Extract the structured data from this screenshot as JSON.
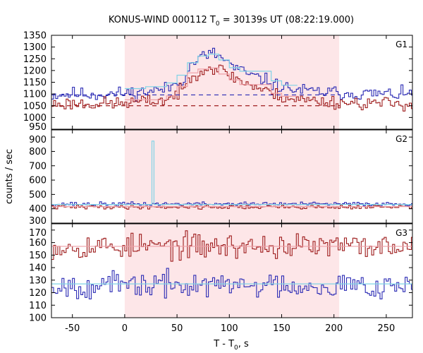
{
  "chart_data": {
    "type": "line",
    "title": {
      "prefix": "KONUS-WIND 000112 T",
      "sub": "0",
      "suffix": " = 30139s UT (08:22:19.000)"
    },
    "xlabel": {
      "prefix": "T - T",
      "sub": "0",
      "suffix": ", s"
    },
    "ylabel": "counts / sec",
    "xlim": [
      -70,
      275
    ],
    "xticks": [
      -50,
      0,
      50,
      100,
      150,
      200,
      250
    ],
    "shaded_interval": [
      0,
      205
    ],
    "colors": {
      "shade": "#fde6e8",
      "blue": "#2a2ab4",
      "red": "#9e1c1c",
      "cyan": "#7fd3e6",
      "pink": "#ee9fa6",
      "frame": "#000000"
    },
    "panels": [
      {
        "label": "G1",
        "ylim": [
          950,
          1350
        ],
        "yticks": [
          950,
          1000,
          1050,
          1100,
          1150,
          1200,
          1250,
          1300,
          1350
        ],
        "series": [
          {
            "kind": "step",
            "color": "blue",
            "points": [
              [
                -70,
                1096
              ],
              [
                -50,
                1101
              ],
              [
                -30,
                1098
              ],
              [
                -10,
                1100
              ],
              [
                0,
                1104
              ],
              [
                20,
                1110
              ],
              [
                40,
                1122
              ],
              [
                55,
                1160
              ],
              [
                65,
                1232
              ],
              [
                75,
                1262
              ],
              [
                85,
                1272
              ],
              [
                95,
                1248
              ],
              [
                105,
                1212
              ],
              [
                115,
                1190
              ],
              [
                125,
                1172
              ],
              [
                135,
                1158
              ],
              [
                145,
                1136
              ],
              [
                160,
                1120
              ],
              [
                180,
                1110
              ],
              [
                200,
                1106
              ],
              [
                220,
                1102
              ],
              [
                250,
                1100
              ],
              [
                275,
                1098
              ]
            ],
            "noise": 14,
            "seed": 11
          },
          {
            "kind": "step",
            "color": "red",
            "points": [
              [
                -70,
                1056
              ],
              [
                -50,
                1060
              ],
              [
                -30,
                1058
              ],
              [
                -10,
                1060
              ],
              [
                0,
                1062
              ],
              [
                20,
                1068
              ],
              [
                40,
                1075
              ],
              [
                55,
                1112
              ],
              [
                65,
                1185
              ],
              [
                75,
                1206
              ],
              [
                85,
                1212
              ],
              [
                95,
                1196
              ],
              [
                105,
                1170
              ],
              [
                115,
                1148
              ],
              [
                125,
                1130
              ],
              [
                135,
                1112
              ],
              [
                145,
                1095
              ],
              [
                160,
                1080
              ],
              [
                180,
                1072
              ],
              [
                200,
                1066
              ],
              [
                220,
                1062
              ],
              [
                250,
                1060
              ],
              [
                275,
                1058
              ]
            ],
            "noise": 14,
            "seed": 23
          },
          {
            "kind": "step",
            "color": "cyan",
            "bins": [
              [
                0,
                20,
                1123
              ],
              [
                20,
                40,
                1131
              ],
              [
                40,
                50,
                1147
              ],
              [
                50,
                60,
                1180
              ],
              [
                60,
                70,
                1233
              ],
              [
                70,
                80,
                1262
              ],
              [
                80,
                90,
                1270
              ],
              [
                90,
                100,
                1245
              ],
              [
                100,
                110,
                1212
              ],
              [
                110,
                140,
                1197
              ],
              [
                140,
                150,
                1156
              ],
              [
                150,
                165,
                1137
              ]
            ]
          },
          {
            "kind": "step",
            "color": "pink",
            "bins": [
              [
                0,
                40,
                1075
              ],
              [
                40,
                50,
                1092
              ],
              [
                50,
                60,
                1132
              ],
              [
                60,
                70,
                1190
              ],
              [
                70,
                80,
                1206
              ],
              [
                80,
                90,
                1211
              ],
              [
                90,
                100,
                1185
              ],
              [
                100,
                110,
                1160
              ],
              [
                110,
                140,
                1140
              ],
              [
                140,
                150,
                1103
              ],
              [
                150,
                165,
                1090
              ]
            ]
          },
          {
            "kind": "dashed",
            "color": "blue",
            "from": -70,
            "to": 206,
            "value": 1096
          },
          {
            "kind": "dashed",
            "color": "red",
            "from": -70,
            "to": 206,
            "value": 1050
          }
        ]
      },
      {
        "label": "G2",
        "ylim": [
          300,
          950
        ],
        "yticks": [
          300,
          400,
          500,
          600,
          700,
          800,
          900
        ],
        "series": [
          {
            "kind": "step",
            "color": "blue",
            "points": [
              [
                -70,
                433
              ],
              [
                275,
                433
              ]
            ],
            "noise": 7,
            "seed": 37
          },
          {
            "kind": "step",
            "color": "red",
            "points": [
              [
                -70,
                412
              ],
              [
                275,
                412
              ]
            ],
            "noise": 7,
            "seed": 41
          },
          {
            "kind": "step",
            "color": "cyan",
            "bins": [
              [
                -70,
                26,
                430
              ],
              [
                26,
                28,
                872
              ],
              [
                28,
                275,
                430
              ]
            ]
          },
          {
            "kind": "step",
            "color": "pink",
            "bins": [
              [
                -70,
                275,
                415
              ]
            ]
          }
        ]
      },
      {
        "label": "G3",
        "ylim": [
          100,
          175
        ],
        "yticks": [
          100,
          110,
          120,
          130,
          140,
          150,
          160,
          170
        ],
        "series": [
          {
            "kind": "step",
            "color": "red",
            "points": [
              [
                -70,
                157
              ],
              [
                275,
                157
              ]
            ],
            "noise": 5,
            "seed": 53
          },
          {
            "kind": "step",
            "color": "blue",
            "points": [
              [
                -70,
                126
              ],
              [
                275,
                126
              ]
            ],
            "noise": 5,
            "seed": 67
          },
          {
            "kind": "flat",
            "color": "pink",
            "from": -70,
            "to": 275,
            "value": 157
          },
          {
            "kind": "flat",
            "color": "cyan",
            "from": -70,
            "to": 275,
            "value": 127
          }
        ]
      }
    ]
  }
}
